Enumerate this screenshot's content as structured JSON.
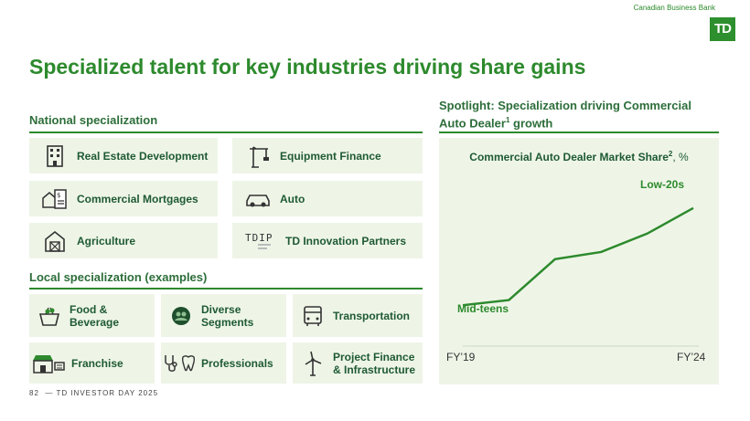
{
  "header": {
    "brand_label": "Canadian Business Bank",
    "logo_text": "TD"
  },
  "title": "Specialized talent for key industries driving share gains",
  "national": {
    "heading": "National specialization",
    "items": [
      {
        "label": "Real Estate Development",
        "icon": "building-icon"
      },
      {
        "label": "Equipment Finance",
        "icon": "crane-icon"
      },
      {
        "label": "Commercial Mortgages",
        "icon": "house-document-icon"
      },
      {
        "label": "Auto",
        "icon": "car-icon"
      },
      {
        "label": "Agriculture",
        "icon": "barn-icon"
      },
      {
        "label": "TD Innovation Partners",
        "icon": "tdip-logo"
      }
    ]
  },
  "local": {
    "heading": "Local specialization (examples)",
    "items": [
      {
        "label": "Food & Beverage",
        "icon": "grocery-basket-icon"
      },
      {
        "label": "Diverse Segments",
        "icon": "people-circle-icon"
      },
      {
        "label": "Transportation",
        "icon": "bus-icon"
      },
      {
        "label": "Franchise",
        "icon": "storefront-icon"
      },
      {
        "label": "Professionals",
        "icon": "stethoscope-tooth-icon"
      },
      {
        "label": "Project Finance & Infrastructure",
        "icon": "wind-turbine-icon"
      }
    ]
  },
  "spotlight": {
    "heading_line1": "Spotlight: Specialization driving Commercial",
    "heading_line2_pre": "Auto Dealer",
    "heading_sup": "1",
    "heading_line2_post": " growth"
  },
  "chart_data": {
    "type": "line",
    "title_pre": "Commercial Auto Dealer Market Share",
    "title_sup": "2",
    "title_post": ", %",
    "x": [
      "FY'19",
      "FY'20",
      "FY'21",
      "FY'22",
      "FY'23",
      "FY'24"
    ],
    "xtick_labels": [
      "FY’19",
      "FY’24"
    ],
    "values": [
      14,
      14.5,
      18.5,
      19.2,
      21,
      23.5
    ],
    "annotations": {
      "start": "Mid-teens",
      "end": "Low-20s"
    },
    "ylim": [
      10,
      25
    ],
    "color": "#2d8a2d"
  },
  "footer": {
    "page": "82",
    "text": "— TD INVESTOR DAY 2025"
  }
}
